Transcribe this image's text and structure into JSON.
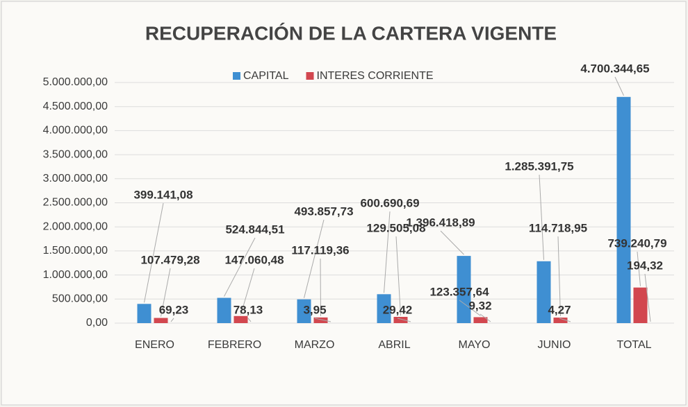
{
  "chart_data": {
    "type": "bar",
    "title": "RECUPERACIÓN DE LA CARTERA VIGENTE",
    "categories": [
      "ENERO",
      "FEBRERO",
      "MARZO",
      "ABRIL",
      "MAYO",
      "JUNIO",
      "TOTAL"
    ],
    "series": [
      {
        "name": "CAPITAL",
        "color": "#3f8fd2",
        "values": [
          399141.08,
          524844.51,
          493857.73,
          600690.69,
          1396418.89,
          1285391.75,
          4700344.65
        ],
        "value_labels": [
          "399.141,08",
          "524.844,51",
          "493.857,73",
          "600.690,69",
          "1.396.418,89",
          "1.285.391,75",
          "4.700.344,65"
        ]
      },
      {
        "name": "INTERES CORRIENTE",
        "color": "#d2474f",
        "values": [
          107479.28,
          147060.48,
          117119.36,
          129505.08,
          123357.64,
          114718.95,
          739240.79
        ],
        "value_labels": [
          "107.479,28",
          "147.060,48",
          "117.119,36",
          "129.505,08",
          "123.357,64",
          "114.718,95",
          "739.240,79"
        ]
      },
      {
        "color": "#a5a5a5",
        "values": [
          69.23,
          78.13,
          3.95,
          29.42,
          9.32,
          4.27,
          194.32
        ],
        "value_labels": [
          "69,23",
          "78,13",
          "3,95",
          "29,42",
          "9,32",
          "4,27",
          "194,32"
        ]
      }
    ],
    "ylim": [
      0,
      5000000
    ],
    "yticks": [
      {
        "value": 0,
        "label": "0,00"
      },
      {
        "value": 500000,
        "label": "500.000,00"
      },
      {
        "value": 1000000,
        "label": "1.000.000,00"
      },
      {
        "value": 1500000,
        "label": "1.500.000,00"
      },
      {
        "value": 2000000,
        "label": "2.000.000,00"
      },
      {
        "value": 2500000,
        "label": "2.500.000,00"
      },
      {
        "value": 3000000,
        "label": "3.000.000,00"
      },
      {
        "value": 3500000,
        "label": "3.500.000,00"
      },
      {
        "value": 4000000,
        "label": "4.000.000,00"
      },
      {
        "value": 4500000,
        "label": "4.500.000,00"
      },
      {
        "value": 5000000,
        "label": "5.000.000,00"
      }
    ],
    "grid": true,
    "legend": "top"
  }
}
